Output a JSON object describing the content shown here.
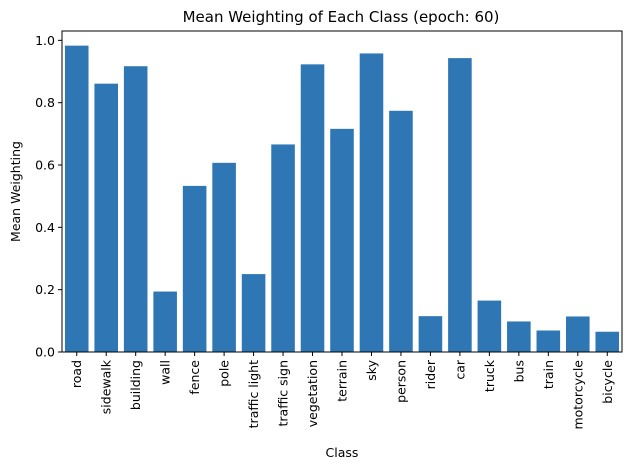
{
  "chart_data": {
    "type": "bar",
    "title": "Mean Weighting of Each Class (epoch: 60)",
    "xlabel": "Class",
    "ylabel": "Mean Weighting",
    "categories": [
      "road",
      "sidewalk",
      "building",
      "wall",
      "fence",
      "pole",
      "traffic light",
      "traffic sign",
      "vegetation",
      "terrain",
      "sky",
      "person",
      "rider",
      "car",
      "truck",
      "bus",
      "train",
      "motorcycle",
      "bicycle"
    ],
    "values": [
      0.983,
      0.861,
      0.917,
      0.194,
      0.533,
      0.607,
      0.25,
      0.666,
      0.923,
      0.716,
      0.958,
      0.774,
      0.115,
      0.943,
      0.165,
      0.098,
      0.069,
      0.114,
      0.065
    ],
    "ylim": [
      0,
      1.03
    ],
    "yticks": [
      "0.0",
      "0.2",
      "0.4",
      "0.6",
      "0.8",
      "1.0"
    ],
    "grid": false,
    "legend": "none",
    "bar_color": "#2f77b4"
  }
}
